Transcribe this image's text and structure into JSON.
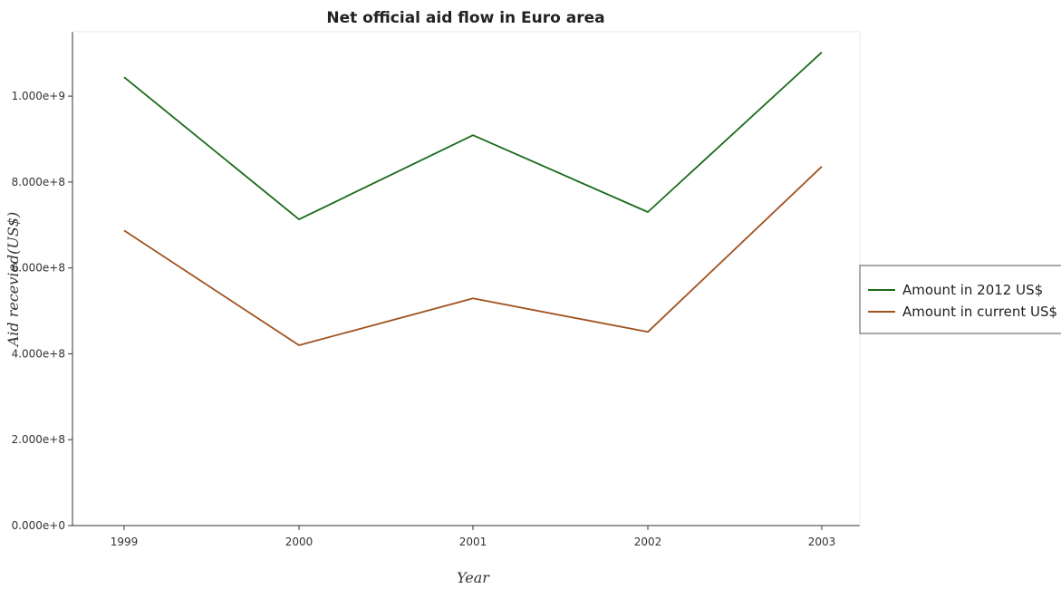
{
  "chart_data": {
    "type": "line",
    "title": "Net official aid flow in Euro area",
    "xlabel": "Year",
    "ylabel": "Aid recevied(US$)",
    "x": [
      "1999",
      "2000",
      "2001",
      "2002",
      "2003"
    ],
    "ylim": [
      0,
      1150000000
    ],
    "yticks": [
      0,
      200000000,
      400000000,
      600000000,
      800000000,
      1000000000
    ],
    "ytick_labels": [
      "0.000e+0",
      "2.000e+8",
      "4.000e+8",
      "6.000e+8",
      "8.000e+8",
      "1.000e+9"
    ],
    "grid": false,
    "legend_position": "right",
    "series": [
      {
        "name": "Amount in 2012 US$",
        "color": "#1a6b1a",
        "values": [
          1044000000,
          713000000,
          909000000,
          730000000,
          1102000000
        ]
      },
      {
        "name": "Amount in current US$",
        "color": "#a0521e",
        "values": [
          687000000,
          420000000,
          529000000,
          451000000,
          836000000
        ]
      }
    ]
  }
}
